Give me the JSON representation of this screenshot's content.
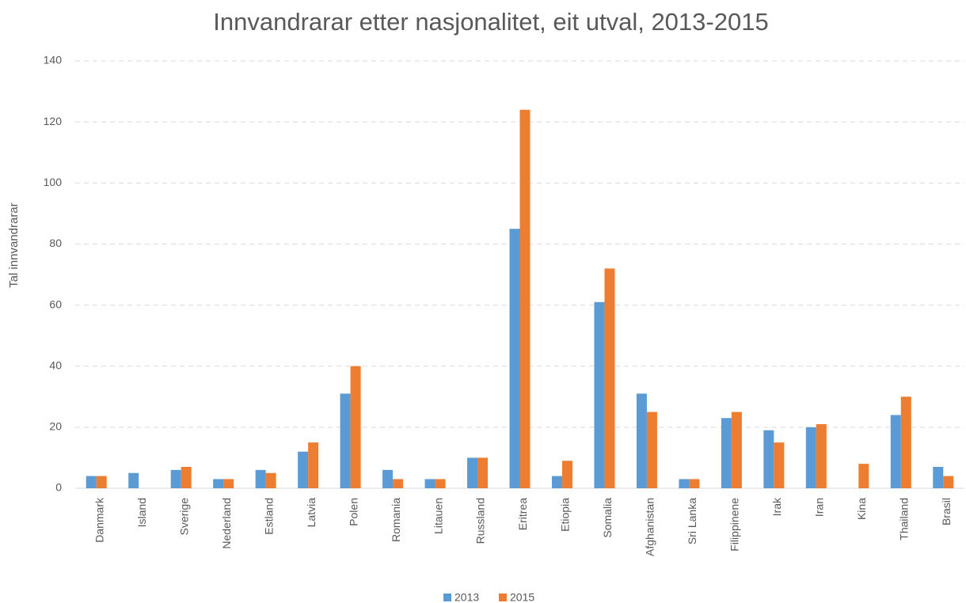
{
  "chart_data": {
    "type": "bar",
    "title": "Innvandrarar etter nasjonalitet, eit utval, 2013-2015",
    "y_label": "Tal innvandrarar",
    "categories": [
      "Danmark",
      "Island",
      "Sverige",
      "Nederland",
      "Estland",
      "Latvia",
      "Polen",
      "Romania",
      "Litauen",
      "Russland",
      "Eritrea",
      "Etiopia",
      "Somalia",
      "Afghanistan",
      "Sri Lanka",
      "Filippinene",
      "Irak",
      "Iran",
      "Kina",
      "Thailand",
      "Brasil"
    ],
    "series": [
      {
        "name": "2013",
        "color": "#5b9bd5",
        "values": [
          4,
          5,
          6,
          3,
          6,
          12,
          31,
          6,
          3,
          10,
          85,
          4,
          61,
          31,
          3,
          23,
          19,
          20,
          0,
          24,
          7
        ]
      },
      {
        "name": "2015",
        "color": "#ed7d31",
        "values": [
          4,
          0,
          7,
          3,
          5,
          15,
          40,
          3,
          3,
          10,
          124,
          9,
          72,
          25,
          3,
          25,
          15,
          21,
          8,
          30,
          4
        ]
      }
    ],
    "ylim": [
      0,
      140
    ],
    "yticks": [
      0,
      20,
      40,
      60,
      80,
      100,
      120,
      140
    ],
    "grid": true,
    "legend": "bottom"
  }
}
